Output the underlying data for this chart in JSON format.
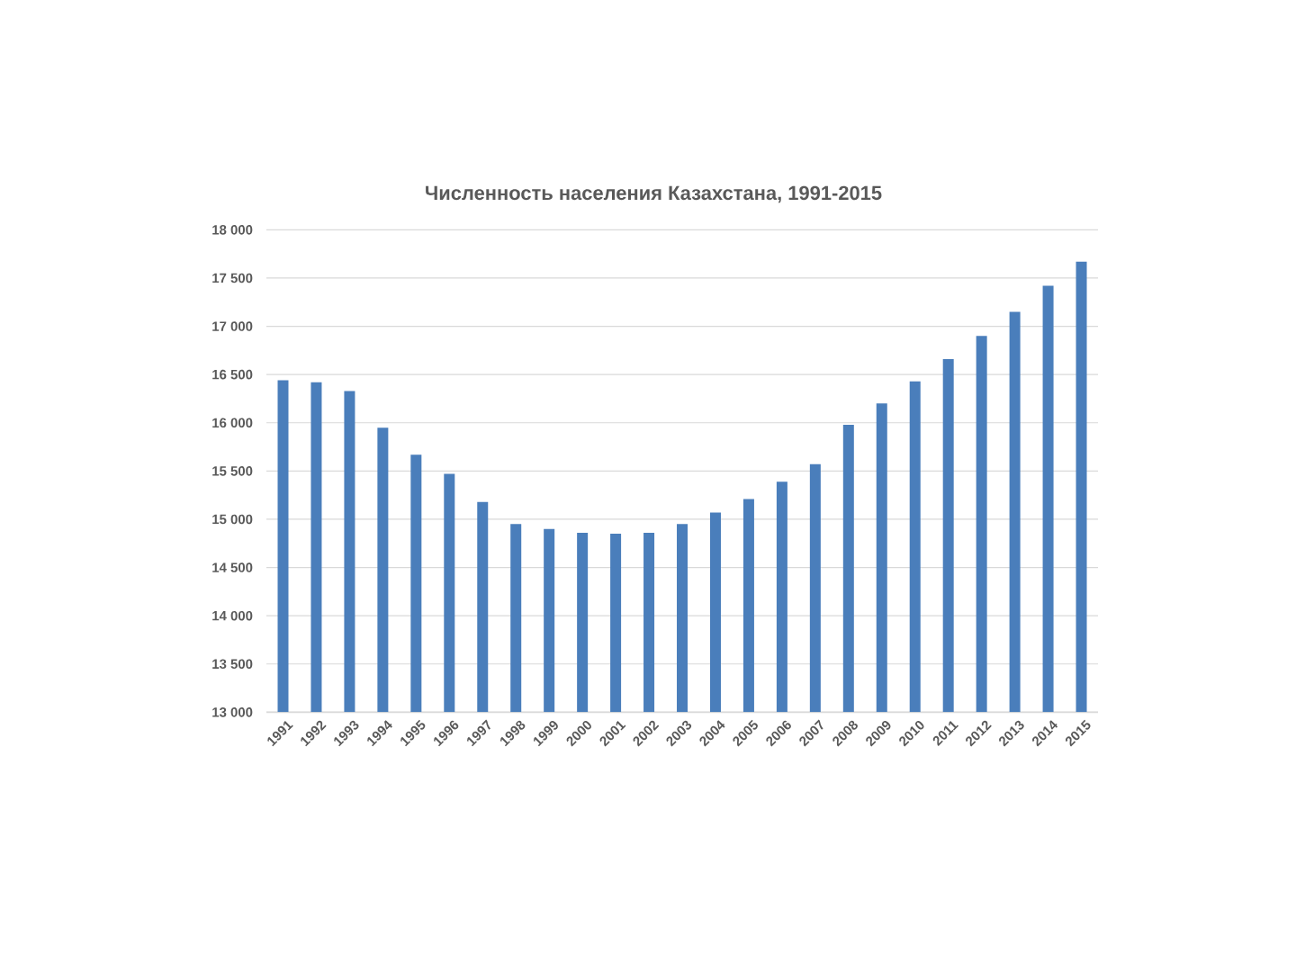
{
  "chart_data": {
    "type": "bar",
    "title": "Численность населения Казахстана, 1991-2015",
    "categories": [
      "1991",
      "1992",
      "1993",
      "1994",
      "1995",
      "1996",
      "1997",
      "1998",
      "1999",
      "2000",
      "2001",
      "2002",
      "2003",
      "2004",
      "2005",
      "2006",
      "2007",
      "2008",
      "2009",
      "2010",
      "2011",
      "2012",
      "2013",
      "2014",
      "2015"
    ],
    "values": [
      16440,
      16420,
      16330,
      15950,
      15670,
      15470,
      15180,
      14950,
      14900,
      14860,
      14850,
      14860,
      14950,
      15070,
      15210,
      15390,
      15570,
      15980,
      16200,
      16430,
      16660,
      16900,
      17150,
      17420,
      17670
    ],
    "color": "#4a7ebb",
    "ylim": [
      13000,
      18000
    ],
    "yticks": [
      {
        "value": 13000,
        "label": "13 000"
      },
      {
        "value": 13500,
        "label": "13 500"
      },
      {
        "value": 14000,
        "label": "14 000"
      },
      {
        "value": 14500,
        "label": "14 500"
      },
      {
        "value": 15000,
        "label": "15 000"
      },
      {
        "value": 15500,
        "label": "15 500"
      },
      {
        "value": 16000,
        "label": "16 000"
      },
      {
        "value": 16500,
        "label": "16 500"
      },
      {
        "value": 17000,
        "label": "17 000"
      },
      {
        "value": 17500,
        "label": "17 500"
      },
      {
        "value": 18000,
        "label": "18 000"
      }
    ],
    "grid": "y"
  }
}
